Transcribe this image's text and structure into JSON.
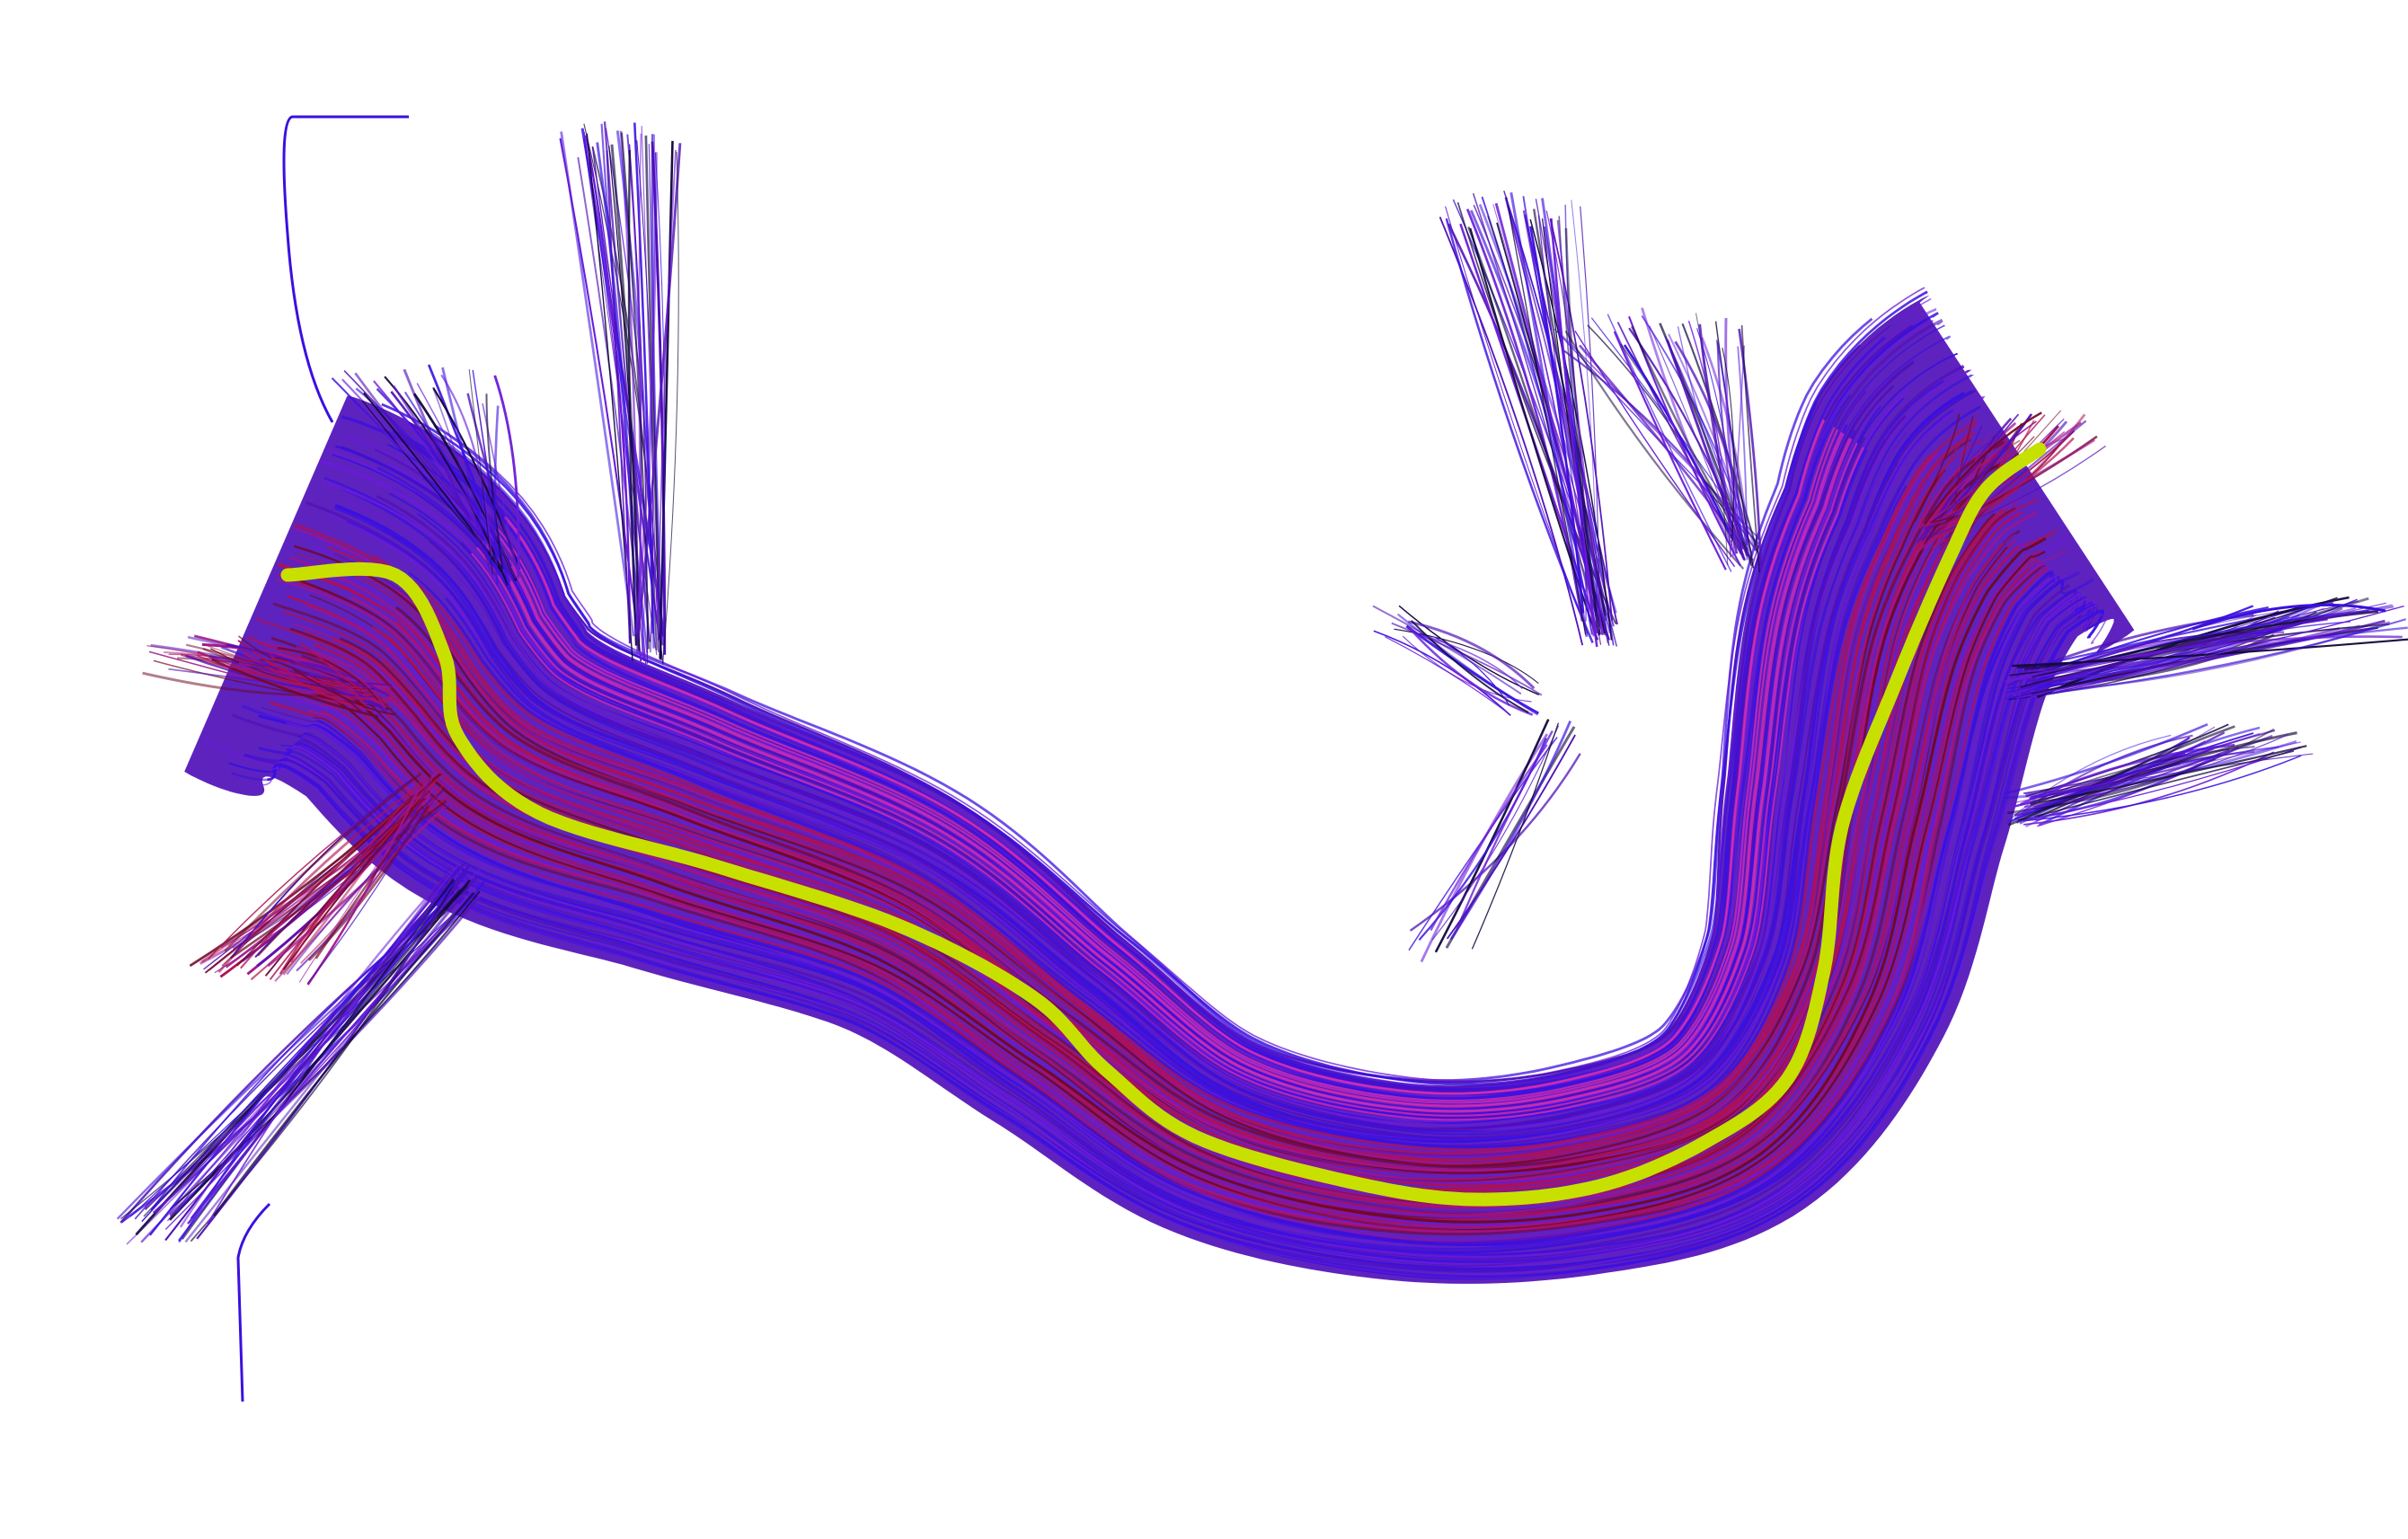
{
  "image": {
    "background": "#ffffff",
    "palette": {
      "blue": "#3a10e0",
      "violet": "#6a1ad8",
      "purple": "#5010b8",
      "magenta": "#a0148a",
      "crimson": "#b01050",
      "deep_red": "#700828",
      "pink_highlight": "#e030b0",
      "navy_shadow": "#140a3c",
      "centerline": "#c8e000"
    },
    "elements": [
      {
        "name": "fiber-bundle",
        "kind": "streamline tract"
      },
      {
        "name": "left-fanning-end",
        "kind": "fiber endings"
      },
      {
        "name": "right-fanning-end",
        "kind": "fiber endings"
      },
      {
        "name": "centerline",
        "kind": "highlighted curve"
      }
    ]
  }
}
